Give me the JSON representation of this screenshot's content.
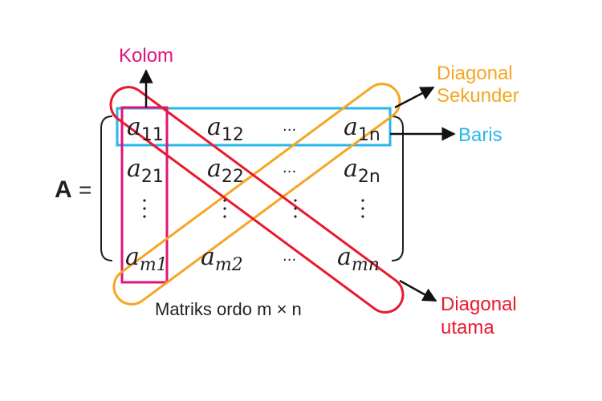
{
  "matrix_name": "A",
  "equals": "=",
  "entry_letter": "a",
  "entries": {
    "r1": [
      "11",
      "12",
      "1n"
    ],
    "r2": [
      "21",
      "22",
      "2n"
    ],
    "r3": [
      "m1",
      "m2",
      "mn"
    ]
  },
  "ellipsis": "···",
  "labels": {
    "column": "Kolom",
    "row": "Baris",
    "secondary_diagonal": [
      "Diagonal",
      "Sekunder"
    ],
    "main_diagonal": [
      "Diagonal",
      "utama"
    ]
  },
  "caption": "Matriks ordo m × n",
  "colors": {
    "column": "#e0147b",
    "row": "#29b6e8",
    "secondary": "#f5a623",
    "main": "#e8192c",
    "text": "#231f20"
  }
}
